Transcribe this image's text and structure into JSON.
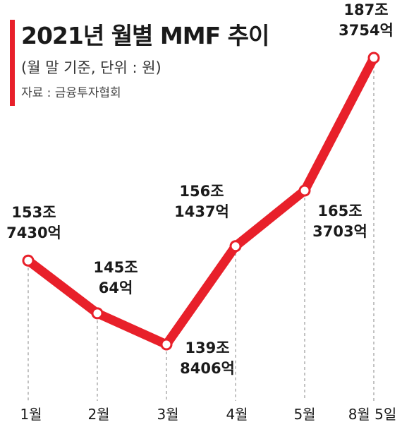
{
  "header": {
    "title": "2021년 월별 MMF 추이",
    "subtitle": "(월 말 기준, 단위 : 원)",
    "source": "자료 : 금융투자협회"
  },
  "colors": {
    "accent": "#e8202a",
    "line": "#e8202a",
    "dash": "#9a9a9a"
  },
  "chart_data": {
    "type": "line",
    "title": "2021년 월별 MMF 추이",
    "categories": [
      "1월",
      "2월",
      "3월",
      "4월",
      "5월",
      "8월 5일"
    ],
    "values": [
      1537430,
      1450064,
      1398406,
      1561437,
      1653703,
      1873754
    ],
    "unit_note": "억원",
    "data_labels": [
      [
        "153조",
        "7430억"
      ],
      [
        "145조",
        "64억"
      ],
      [
        "139조",
        "8406억"
      ],
      [
        "156조",
        "1437억"
      ],
      [
        "165조",
        "3703억"
      ],
      [
        "187조",
        "3754억"
      ]
    ],
    "grid": false,
    "legend": "none"
  }
}
